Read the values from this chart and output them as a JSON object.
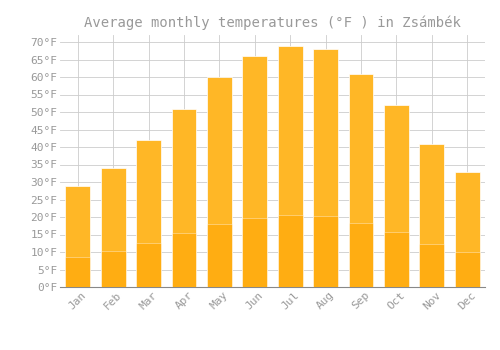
{
  "title": "Average monthly temperatures (°F ) in Zsámbék",
  "months": [
    "Jan",
    "Feb",
    "Mar",
    "Apr",
    "May",
    "Jun",
    "Jul",
    "Aug",
    "Sep",
    "Oct",
    "Nov",
    "Dec"
  ],
  "values": [
    29,
    34,
    42,
    51,
    60,
    66,
    69,
    68,
    61,
    52,
    41,
    33
  ],
  "bar_color_top": "#FFB726",
  "bar_color_bottom": "#FFA500",
  "background_color": "#FFFFFF",
  "grid_color": "#CCCCCC",
  "text_color": "#999999",
  "ylim": [
    0,
    72
  ],
  "yticks": [
    0,
    5,
    10,
    15,
    20,
    25,
    30,
    35,
    40,
    45,
    50,
    55,
    60,
    65,
    70
  ],
  "ylabel_suffix": "°F",
  "title_fontsize": 10,
  "tick_fontsize": 8,
  "font_family": "monospace"
}
